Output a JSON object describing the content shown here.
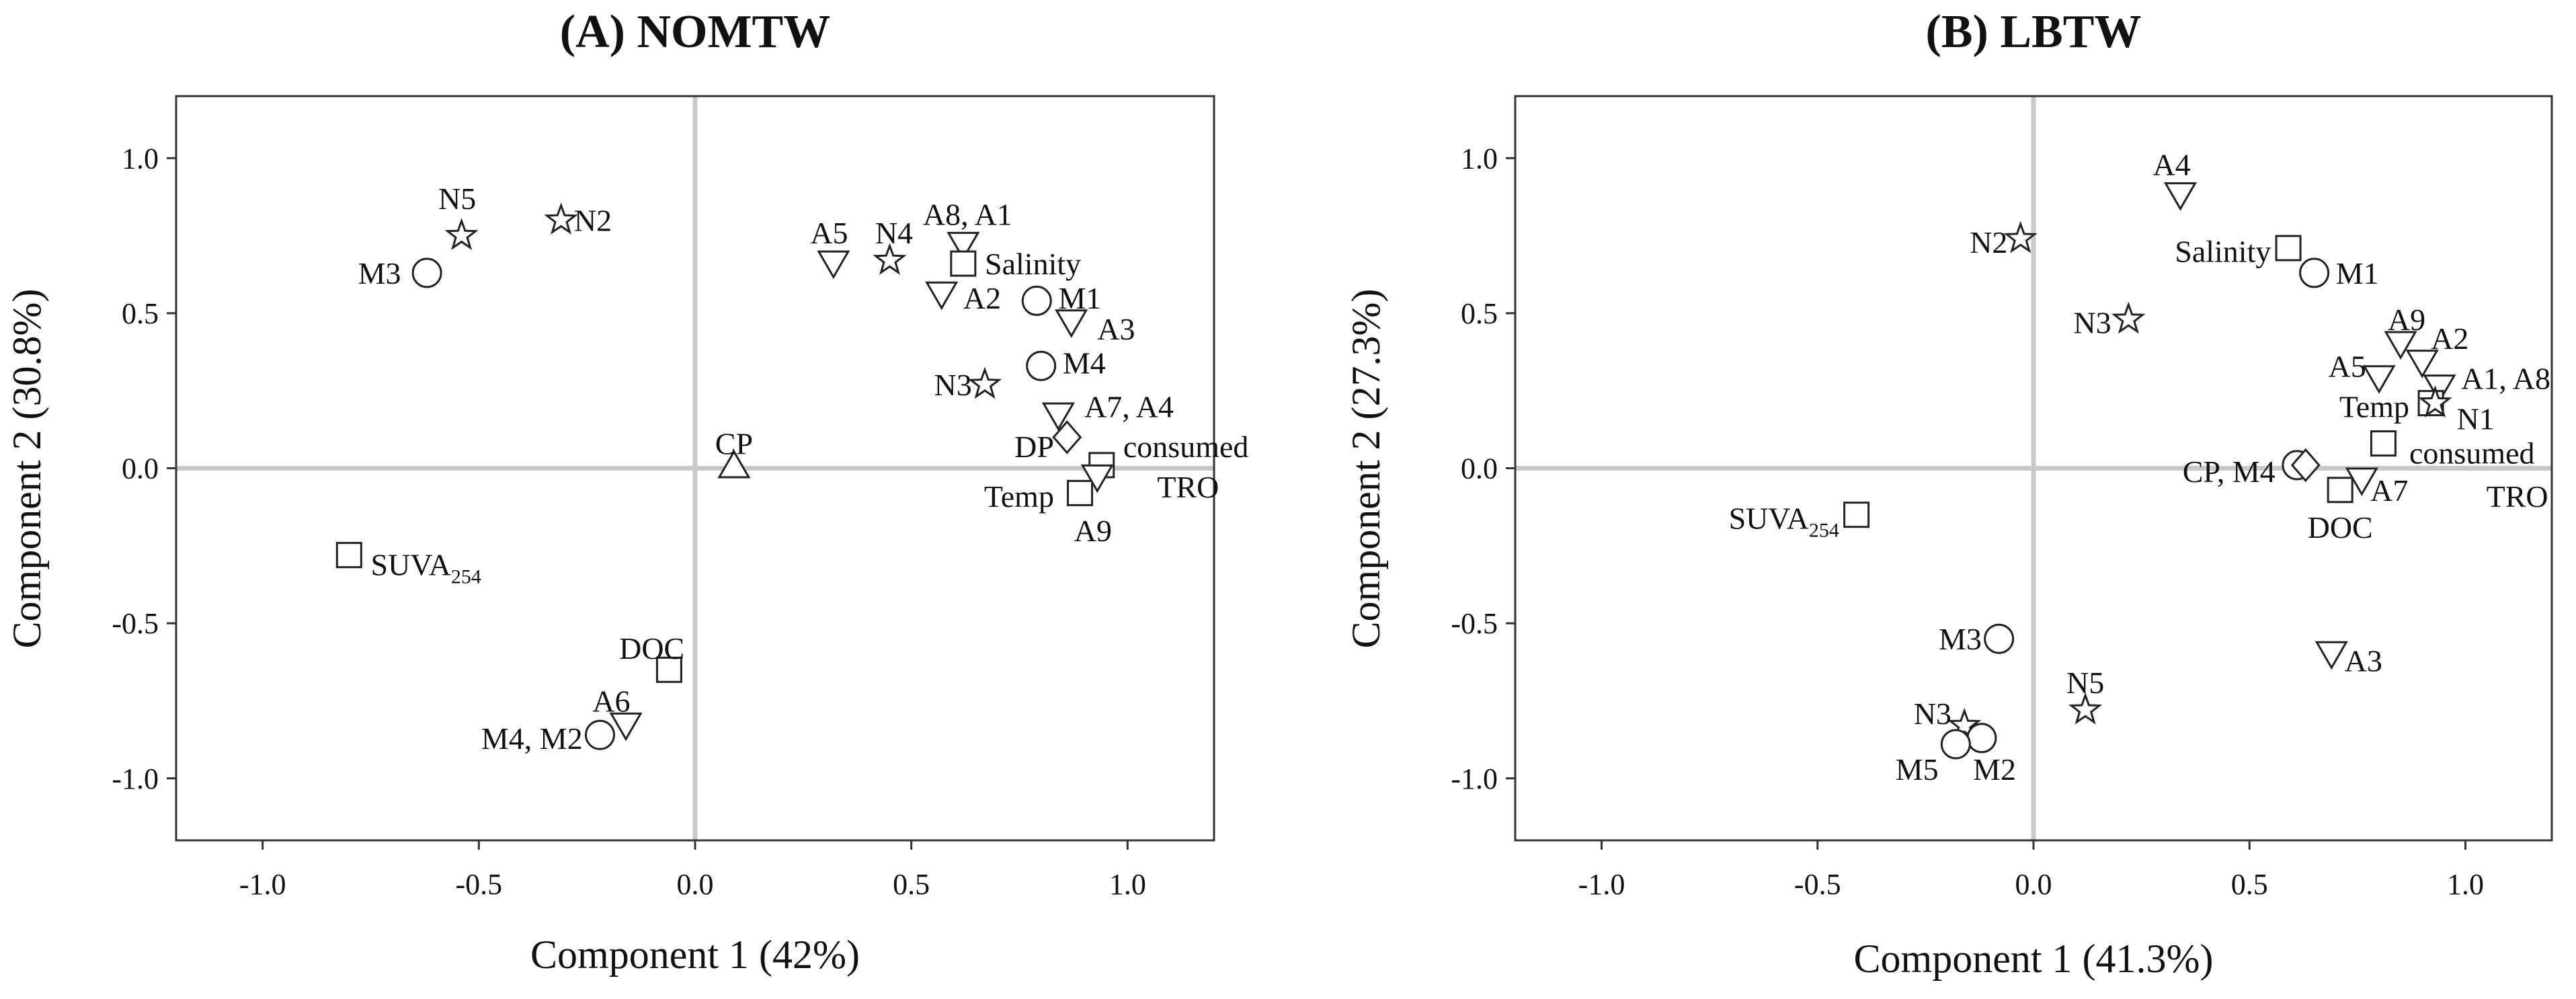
{
  "chart_data": [
    {
      "type": "scatter",
      "title": "(A) NOMTW",
      "xlabel": "Component 1 (42%)",
      "ylabel": "Component 2 (30.8%)",
      "xlim": [
        -1.2,
        1.2
      ],
      "ylim": [
        -1.2,
        1.2
      ],
      "xticks": [
        "-1.0",
        "-0.5",
        "0.0",
        "0.5",
        "1.0"
      ],
      "yticks": [
        "1.0",
        "0.5",
        "0.0",
        "-0.5",
        "-1.0"
      ],
      "grid": false,
      "points": [
        {
          "label": "N5",
          "x": -0.54,
          "y": 0.75,
          "marker": "star",
          "lx": -0.55,
          "ly": 0.87,
          "anchor": "middle"
        },
        {
          "label": "N2",
          "x": -0.31,
          "y": 0.8,
          "marker": "star",
          "lx": -0.28,
          "ly": 0.8,
          "anchor": "start"
        },
        {
          "label": "M3",
          "x": -0.62,
          "y": 0.63,
          "marker": "circle",
          "lx": -0.68,
          "ly": 0.63,
          "anchor": "end"
        },
        {
          "label": "A5",
          "x": 0.32,
          "y": 0.66,
          "marker": "tri-down",
          "lx": 0.31,
          "ly": 0.76,
          "anchor": "middle"
        },
        {
          "label": "N4",
          "x": 0.45,
          "y": 0.67,
          "marker": "star",
          "lx": 0.46,
          "ly": 0.76,
          "anchor": "middle"
        },
        {
          "label": "A8, A1",
          "x": 0.62,
          "y": 0.72,
          "marker": "tri-down",
          "lx": 0.63,
          "ly": 0.82,
          "anchor": "middle"
        },
        {
          "label": "Salinity",
          "x": 0.62,
          "y": 0.66,
          "marker": "square",
          "lx": 0.67,
          "ly": 0.66,
          "anchor": "start"
        },
        {
          "label": "A2",
          "x": 0.57,
          "y": 0.56,
          "marker": "tri-down",
          "lx": 0.62,
          "ly": 0.55,
          "anchor": "start"
        },
        {
          "label": "M1",
          "x": 0.79,
          "y": 0.54,
          "marker": "circle",
          "lx": 0.84,
          "ly": 0.55,
          "anchor": "start"
        },
        {
          "label": "A3",
          "x": 0.87,
          "y": 0.47,
          "marker": "tri-down",
          "lx": 0.93,
          "ly": 0.45,
          "anchor": "start"
        },
        {
          "label": "M4",
          "x": 0.8,
          "y": 0.33,
          "marker": "circle",
          "lx": 0.85,
          "ly": 0.34,
          "anchor": "start"
        },
        {
          "label": "N3",
          "x": 0.67,
          "y": 0.27,
          "marker": "star",
          "lx": 0.64,
          "ly": 0.27,
          "anchor": "end"
        },
        {
          "label": "A7, A4",
          "x": 0.84,
          "y": 0.17,
          "marker": "tri-down",
          "lx": 0.9,
          "ly": 0.2,
          "anchor": "start"
        },
        {
          "label": "DP",
          "x": 0.86,
          "y": 0.1,
          "marker": "diamond",
          "lx": 0.83,
          "ly": 0.07,
          "anchor": "end"
        },
        {
          "label": "consumed",
          "x": 0.94,
          "y": 0.01,
          "marker": "square",
          "lx": 0.99,
          "ly": 0.07,
          "anchor": "start"
        },
        {
          "label": "TRO",
          "x": null,
          "y": null,
          "marker": "none",
          "lx": 1.14,
          "ly": -0.06,
          "anchor": "middle"
        },
        {
          "label": "Temp",
          "x": 0.89,
          "y": -0.08,
          "marker": "square",
          "lx": 0.83,
          "ly": -0.09,
          "anchor": "end"
        },
        {
          "label": "A9",
          "x": 0.93,
          "y": -0.03,
          "marker": "tri-down",
          "lx": 0.92,
          "ly": -0.2,
          "anchor": "middle"
        },
        {
          "label": "CP",
          "x": 0.09,
          "y": 0.01,
          "marker": "triangle",
          "lx": 0.09,
          "ly": 0.08,
          "anchor": "middle"
        },
        {
          "label": "SUVA",
          "sub": "254",
          "x": -0.8,
          "y": -0.28,
          "marker": "square",
          "lx": -0.75,
          "ly": -0.31,
          "anchor": "start"
        },
        {
          "label": "DOC",
          "x": -0.06,
          "y": -0.65,
          "marker": "square",
          "lx": -0.1,
          "ly": -0.58,
          "anchor": "middle"
        },
        {
          "label": "A6",
          "x": -0.16,
          "y": -0.83,
          "marker": "tri-down",
          "lx": -0.15,
          "ly": -0.75,
          "anchor": "end"
        },
        {
          "label": "M4, M2",
          "x": -0.22,
          "y": -0.86,
          "marker": "circle",
          "lx": -0.26,
          "ly": -0.87,
          "anchor": "end"
        }
      ]
    },
    {
      "type": "scatter",
      "title": "(B) LBTW",
      "xlabel": "Component 1 (41.3%)",
      "ylabel": "Component 2 (27.3%)",
      "xlim": [
        -1.2,
        1.2
      ],
      "ylim": [
        -1.2,
        1.2
      ],
      "xticks": [
        "-1.0",
        "-0.5",
        "0.0",
        "0.5",
        "1.0"
      ],
      "yticks": [
        "1.0",
        "0.5",
        "0.0",
        "-0.5",
        "-1.0"
      ],
      "grid": false,
      "points": [
        {
          "label": "A4",
          "x": 0.34,
          "y": 0.88,
          "marker": "tri-down",
          "lx": 0.32,
          "ly": 0.98,
          "anchor": "middle"
        },
        {
          "label": "N2",
          "x": -0.03,
          "y": 0.74,
          "marker": "star",
          "lx": -0.06,
          "ly": 0.73,
          "anchor": "end"
        },
        {
          "label": "Salinity",
          "x": 0.59,
          "y": 0.71,
          "marker": "square",
          "lx": 0.55,
          "ly": 0.7,
          "anchor": "end"
        },
        {
          "label": "M1",
          "x": 0.65,
          "y": 0.63,
          "marker": "circle",
          "lx": 0.7,
          "ly": 0.63,
          "anchor": "start"
        },
        {
          "label": "N3",
          "x": 0.22,
          "y": 0.48,
          "marker": "star",
          "lx": 0.18,
          "ly": 0.47,
          "anchor": "end"
        },
        {
          "label": "A9",
          "x": 0.85,
          "y": 0.4,
          "marker": "tri-down",
          "lx": 0.82,
          "ly": 0.48,
          "anchor": "start"
        },
        {
          "label": "A2",
          "x": 0.9,
          "y": 0.34,
          "marker": "tri-down",
          "lx": 0.92,
          "ly": 0.42,
          "anchor": "start"
        },
        {
          "label": "A5",
          "x": 0.8,
          "y": 0.29,
          "marker": "tri-down",
          "lx": 0.77,
          "ly": 0.33,
          "anchor": "end"
        },
        {
          "label": "A1, A8",
          "x": 0.94,
          "y": 0.26,
          "marker": "tri-down",
          "lx": 0.99,
          "ly": 0.29,
          "anchor": "start"
        },
        {
          "label": "Temp",
          "x": 0.92,
          "y": 0.21,
          "marker": "square",
          "lx": 0.87,
          "ly": 0.2,
          "anchor": "end"
        },
        {
          "label": "N1",
          "x": 0.93,
          "y": 0.21,
          "marker": "star",
          "lx": 0.98,
          "ly": 0.16,
          "anchor": "start"
        },
        {
          "label": "consumed",
          "x": 0.81,
          "y": 0.08,
          "marker": "square",
          "lx": 0.87,
          "ly": 0.05,
          "anchor": "start"
        },
        {
          "label": "TRO",
          "x": null,
          "y": null,
          "marker": "none",
          "lx": 1.12,
          "ly": -0.09,
          "anchor": "middle"
        },
        {
          "label": "CP, M4",
          "x": 0.61,
          "y": 0.01,
          "marker": "circle",
          "lx": 0.56,
          "ly": -0.01,
          "anchor": "end"
        },
        {
          "label": "",
          "x": 0.63,
          "y": 0.01,
          "marker": "diamond",
          "lx": 0,
          "ly": 0,
          "anchor": "start"
        },
        {
          "label": "A7",
          "x": 0.76,
          "y": -0.04,
          "marker": "tri-down",
          "lx": 0.78,
          "ly": -0.07,
          "anchor": "start"
        },
        {
          "label": "DOC",
          "x": 0.71,
          "y": -0.07,
          "marker": "square",
          "lx": 0.71,
          "ly": -0.19,
          "anchor": "middle"
        },
        {
          "label": "SUVA",
          "sub": "254",
          "x": -0.41,
          "y": -0.15,
          "marker": "square",
          "lx": -0.45,
          "ly": -0.16,
          "anchor": "end"
        },
        {
          "label": "M3",
          "x": -0.08,
          "y": -0.55,
          "marker": "circle",
          "lx": -0.12,
          "ly": -0.55,
          "anchor": "end"
        },
        {
          "label": "A3",
          "x": 0.69,
          "y": -0.6,
          "marker": "tri-down",
          "lx": 0.72,
          "ly": -0.62,
          "anchor": "start"
        },
        {
          "label": "N5",
          "x": 0.12,
          "y": -0.78,
          "marker": "star",
          "lx": 0.12,
          "ly": -0.69,
          "anchor": "middle"
        },
        {
          "label": "N3",
          "x": -0.16,
          "y": -0.83,
          "marker": "star",
          "lx": -0.19,
          "ly": -0.79,
          "anchor": "end"
        },
        {
          "label": "M2",
          "x": -0.12,
          "y": -0.87,
          "marker": "circle",
          "lx": -0.14,
          "ly": -0.97,
          "anchor": "start"
        },
        {
          "label": "M5",
          "x": -0.18,
          "y": -0.89,
          "marker": "circle",
          "lx": -0.22,
          "ly": -0.97,
          "anchor": "end"
        }
      ]
    }
  ]
}
